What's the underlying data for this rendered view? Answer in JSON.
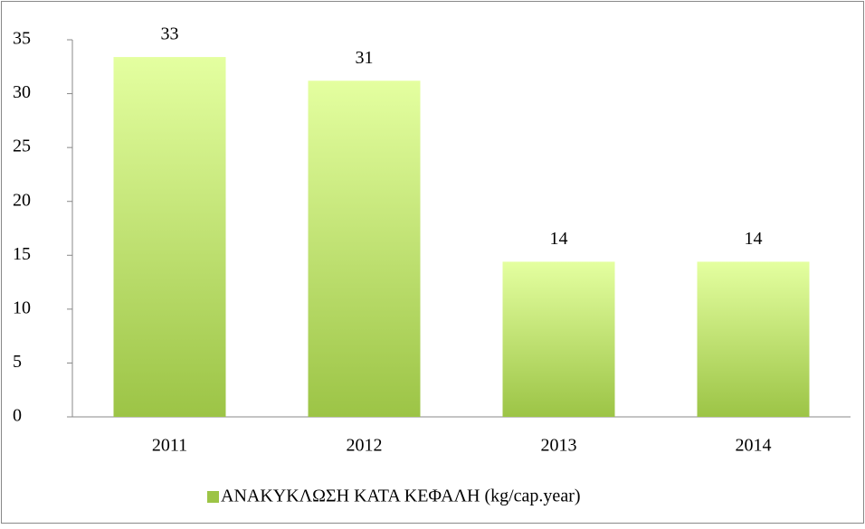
{
  "chart_data": {
    "type": "bar",
    "categories": [
      "2011",
      "2012",
      "2013",
      "2014"
    ],
    "series": [
      {
        "name": "ΑΝΑΚΥΚΛΩΣΗ ΚΑΤΑ ΚΕΦΑΛΗ (kg/cap.year)",
        "color": "#9cc446",
        "values": [
          33.4,
          31.2,
          14.4,
          14.4
        ],
        "value_labels": [
          "33",
          "31",
          "14",
          "14"
        ]
      }
    ],
    "ylim": [
      0,
      35
    ],
    "yticks": [
      0,
      5,
      10,
      15,
      20,
      25,
      30,
      35
    ],
    "grid": false,
    "legend": "bottom"
  }
}
